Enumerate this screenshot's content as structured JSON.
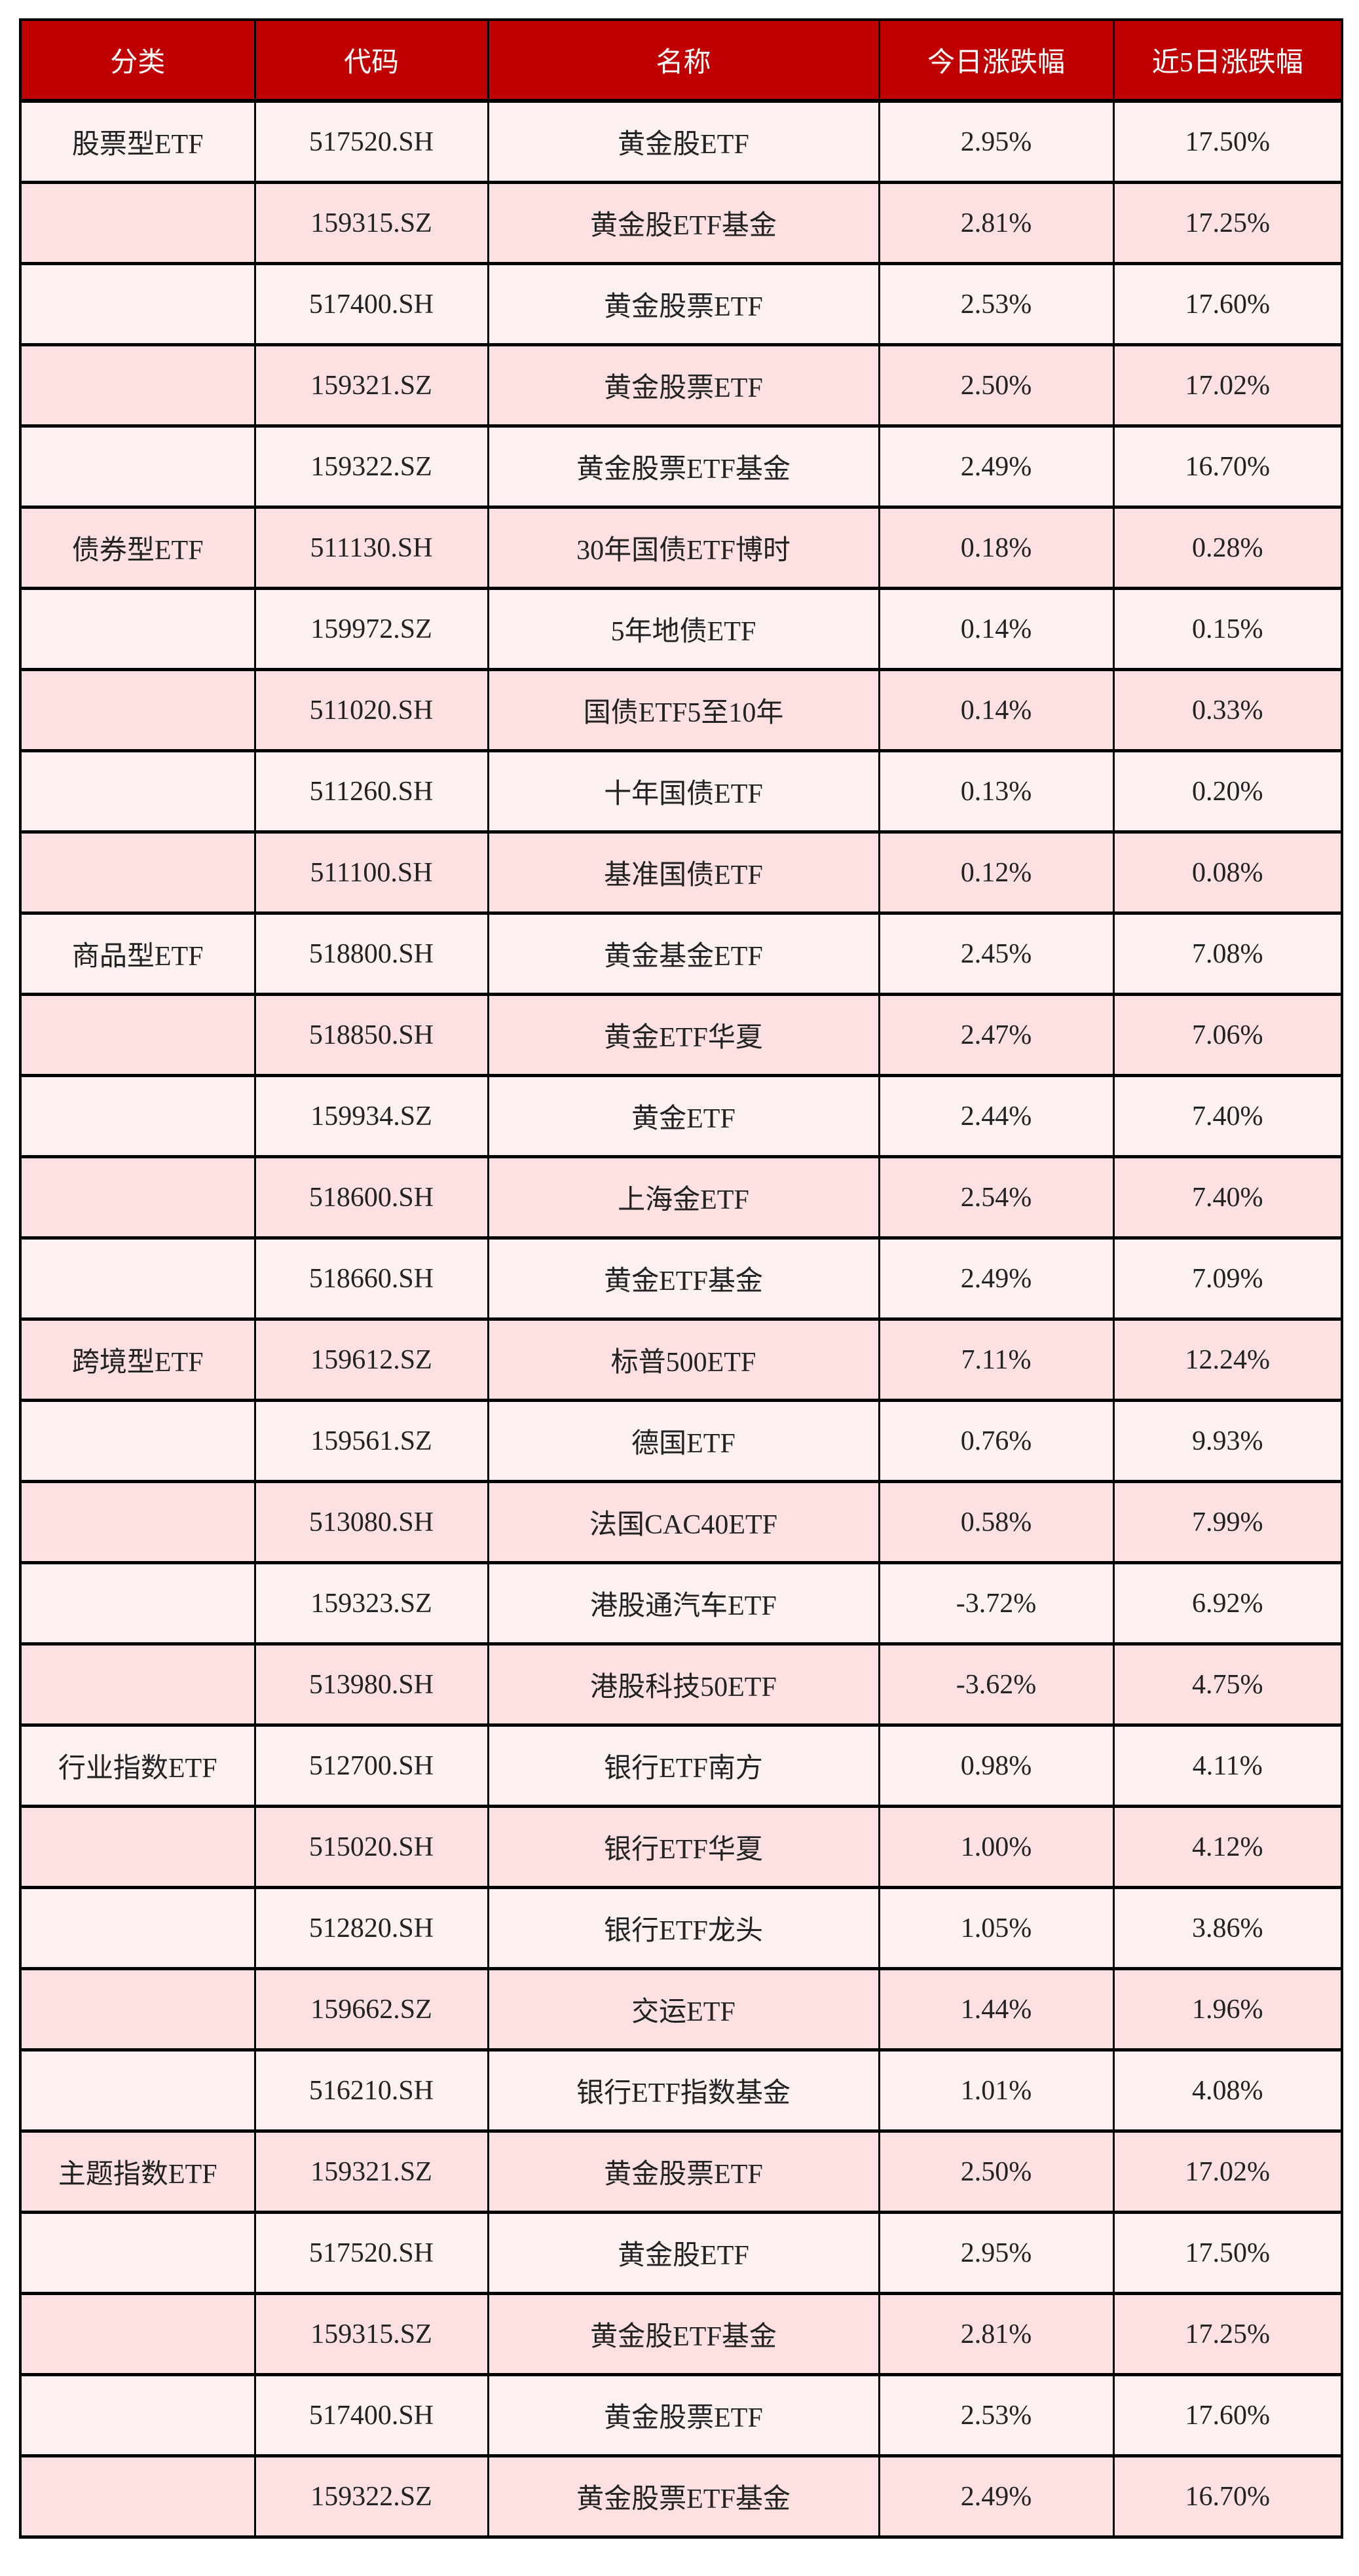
{
  "colors": {
    "header_bg": "#C00000",
    "row_odd": "#FDF0F0",
    "row_even": "#FCE0E2"
  },
  "table": {
    "headers": [
      "分类",
      "代码",
      "名称",
      "今日涨跌幅",
      "近5日涨跌幅"
    ],
    "rows": [
      [
        "股票型ETF",
        "517520.SH",
        "黄金股ETF",
        "2.95%",
        "17.50%"
      ],
      [
        "",
        "159315.SZ",
        "黄金股ETF基金",
        "2.81%",
        "17.25%"
      ],
      [
        "",
        "517400.SH",
        "黄金股票ETF",
        "2.53%",
        "17.60%"
      ],
      [
        "",
        "159321.SZ",
        "黄金股票ETF",
        "2.50%",
        "17.02%"
      ],
      [
        "",
        "159322.SZ",
        "黄金股票ETF基金",
        "2.49%",
        "16.70%"
      ],
      [
        "债券型ETF",
        "511130.SH",
        "30年国债ETF博时",
        "0.18%",
        "0.28%"
      ],
      [
        "",
        "159972.SZ",
        "5年地债ETF",
        "0.14%",
        "0.15%"
      ],
      [
        "",
        "511020.SH",
        "国债ETF5至10年",
        "0.14%",
        "0.33%"
      ],
      [
        "",
        "511260.SH",
        "十年国债ETF",
        "0.13%",
        "0.20%"
      ],
      [
        "",
        "511100.SH",
        "基准国债ETF",
        "0.12%",
        "0.08%"
      ],
      [
        "商品型ETF",
        "518800.SH",
        "黄金基金ETF",
        "2.45%",
        "7.08%"
      ],
      [
        "",
        "518850.SH",
        "黄金ETF华夏",
        "2.47%",
        "7.06%"
      ],
      [
        "",
        "159934.SZ",
        "黄金ETF",
        "2.44%",
        "7.40%"
      ],
      [
        "",
        "518600.SH",
        "上海金ETF",
        "2.54%",
        "7.40%"
      ],
      [
        "",
        "518660.SH",
        "黄金ETF基金",
        "2.49%",
        "7.09%"
      ],
      [
        "跨境型ETF",
        "159612.SZ",
        "标普500ETF",
        "7.11%",
        "12.24%"
      ],
      [
        "",
        "159561.SZ",
        "德国ETF",
        "0.76%",
        "9.93%"
      ],
      [
        "",
        "513080.SH",
        "法国CAC40ETF",
        "0.58%",
        "7.99%"
      ],
      [
        "",
        "159323.SZ",
        "港股通汽车ETF",
        "-3.72%",
        "6.92%"
      ],
      [
        "",
        "513980.SH",
        "港股科技50ETF",
        "-3.62%",
        "4.75%"
      ],
      [
        "行业指数ETF",
        "512700.SH",
        "银行ETF南方",
        "0.98%",
        "4.11%"
      ],
      [
        "",
        "515020.SH",
        "银行ETF华夏",
        "1.00%",
        "4.12%"
      ],
      [
        "",
        "512820.SH",
        "银行ETF龙头",
        "1.05%",
        "3.86%"
      ],
      [
        "",
        "159662.SZ",
        "交运ETF",
        "1.44%",
        "1.96%"
      ],
      [
        "",
        "516210.SH",
        "银行ETF指数基金",
        "1.01%",
        "4.08%"
      ],
      [
        "主题指数ETF",
        "159321.SZ",
        "黄金股票ETF",
        "2.50%",
        "17.02%"
      ],
      [
        "",
        "517520.SH",
        "黄金股ETF",
        "2.95%",
        "17.50%"
      ],
      [
        "",
        "159315.SZ",
        "黄金股ETF基金",
        "2.81%",
        "17.25%"
      ],
      [
        "",
        "517400.SH",
        "黄金股票ETF",
        "2.53%",
        "17.60%"
      ],
      [
        "",
        "159322.SZ",
        "黄金股票ETF基金",
        "2.49%",
        "16.70%"
      ]
    ]
  }
}
